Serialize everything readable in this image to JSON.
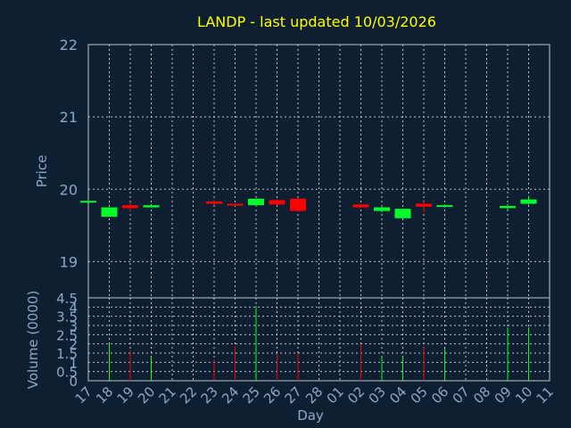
{
  "chart_data": {
    "type": "candlestick",
    "title": "LANDP - last updated 10/03/2026",
    "xlabel": "Day",
    "price_panel": {
      "ylabel": "Price",
      "ylim": [
        18.5,
        22.0
      ],
      "yticks": [
        19,
        20,
        21,
        22
      ],
      "grid": true
    },
    "volume_panel": {
      "ylabel": "Volume (0000)",
      "ylim": [
        0,
        4.5
      ],
      "yticks": [
        "0",
        "0.5",
        "1",
        "1.5",
        "2",
        "2.5",
        "3",
        "3.5",
        "4",
        "4.5"
      ],
      "grid": true
    },
    "colors": {
      "up": "#00ff2a",
      "down": "#ff0000",
      "background": "#0f1f32",
      "title": "#ffff00",
      "axis_text": "#8aa9c8",
      "grid": "#b8c4d0"
    },
    "x_labels": [
      "17",
      "18",
      "19",
      "20",
      "21",
      "22",
      "23",
      "24",
      "25",
      "26",
      "27",
      "28",
      "01",
      "02",
      "03",
      "04",
      "05",
      "06",
      "07",
      "08",
      "09",
      "10",
      "11"
    ],
    "candles": [
      {
        "day": "17",
        "open": 19.84,
        "close": 19.84,
        "high": 19.85,
        "low": 19.83,
        "volume": 0
      },
      {
        "day": "18",
        "open": 19.62,
        "close": 19.75,
        "high": 19.75,
        "low": 19.62,
        "volume": 2.0
      },
      {
        "day": "19",
        "open": 19.78,
        "close": 19.74,
        "high": 19.82,
        "low": 19.7,
        "volume": 1.65
      },
      {
        "day": "20",
        "open": 19.75,
        "close": 19.78,
        "high": 19.8,
        "low": 19.75,
        "volume": 1.3
      },
      {
        "day": "23",
        "open": 19.83,
        "close": 19.8,
        "high": 19.84,
        "low": 19.78,
        "volume": 1.1
      },
      {
        "day": "24",
        "open": 19.8,
        "close": 19.78,
        "high": 19.8,
        "low": 19.77,
        "volume": 1.9
      },
      {
        "day": "25",
        "open": 19.78,
        "close": 19.87,
        "high": 19.87,
        "low": 19.76,
        "volume": 4.05
      },
      {
        "day": "26",
        "open": 19.85,
        "close": 19.79,
        "high": 19.86,
        "low": 19.78,
        "volume": 1.45
      },
      {
        "day": "27",
        "open": 19.87,
        "close": 19.7,
        "high": 19.87,
        "low": 19.7,
        "volume": 1.5
      },
      {
        "day": "02",
        "open": 19.79,
        "close": 19.75,
        "high": 19.8,
        "low": 19.74,
        "volume": 2.0
      },
      {
        "day": "03",
        "open": 19.7,
        "close": 19.75,
        "high": 19.77,
        "low": 19.68,
        "volume": 1.3
      },
      {
        "day": "04",
        "open": 19.6,
        "close": 19.73,
        "high": 19.73,
        "low": 19.6,
        "volume": 1.3
      },
      {
        "day": "05",
        "open": 19.8,
        "close": 19.76,
        "high": 19.83,
        "low": 19.68,
        "volume": 1.8
      },
      {
        "day": "06",
        "open": 19.76,
        "close": 19.78,
        "high": 19.79,
        "low": 19.75,
        "volume": 1.75
      },
      {
        "day": "09",
        "open": 19.74,
        "close": 19.77,
        "high": 19.8,
        "low": 19.72,
        "volume": 2.9
      },
      {
        "day": "10",
        "open": 19.8,
        "close": 19.86,
        "high": 19.91,
        "low": 19.79,
        "volume": 2.9
      }
    ]
  }
}
